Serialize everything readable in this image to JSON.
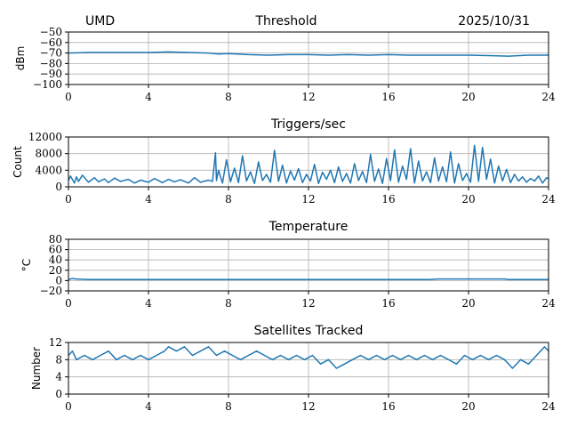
{
  "header": {
    "left": "UMD",
    "center": "Threshold",
    "right": "2025/10/31"
  },
  "chart_data": [
    {
      "type": "line",
      "title": "Threshold",
      "ylabel": "dBm",
      "xlim": [
        0,
        24
      ],
      "ylim": [
        -100,
        -50
      ],
      "xticks": [
        0,
        4,
        8,
        12,
        16,
        20,
        24
      ],
      "yticks": [
        -100,
        -90,
        -80,
        -70,
        -60,
        -50
      ],
      "ytick_labels": [
        "−100",
        "−90",
        "−80",
        "−70",
        "−60",
        "−50"
      ],
      "grid": true,
      "color": "#1f77b4",
      "series": [
        {
          "x": [
            0,
            1,
            2,
            3,
            4,
            5,
            6,
            7,
            7.5,
            8,
            9,
            10,
            11,
            12,
            13,
            14,
            15,
            16,
            17,
            18,
            19,
            20,
            21,
            22,
            23,
            24
          ],
          "values": [
            -70,
            -69.5,
            -69.5,
            -69.5,
            -69.5,
            -69,
            -69.5,
            -70,
            -71,
            -70.5,
            -71.5,
            -72,
            -71.5,
            -71.5,
            -72,
            -71.5,
            -72,
            -71.5,
            -72,
            -72,
            -72,
            -72,
            -72.5,
            -73,
            -72,
            -72
          ]
        }
      ]
    },
    {
      "type": "line",
      "title": "Triggers/sec",
      "ylabel": "Count",
      "xlim": [
        0,
        24
      ],
      "ylim": [
        0,
        12000
      ],
      "xticks": [
        0,
        4,
        8,
        12,
        16,
        20,
        24
      ],
      "yticks": [
        0,
        4000,
        8000,
        12000
      ],
      "ytick_labels": [
        "0",
        "4000",
        "8000",
        "12000"
      ],
      "grid": true,
      "color": "#1f77b4",
      "series": [
        {
          "x": [
            0,
            0.1,
            0.3,
            0.4,
            0.5,
            0.7,
            1.0,
            1.3,
            1.5,
            1.8,
            2.0,
            2.3,
            2.6,
            3.0,
            3.3,
            3.6,
            4.0,
            4.3,
            4.7,
            5.0,
            5.3,
            5.6,
            6.0,
            6.3,
            6.6,
            7.0,
            7.2,
            7.35,
            7.4,
            7.5,
            7.7,
            7.9,
            8.1,
            8.3,
            8.5,
            8.7,
            8.9,
            9.1,
            9.3,
            9.5,
            9.7,
            9.9,
            10.1,
            10.3,
            10.5,
            10.7,
            10.9,
            11.1,
            11.3,
            11.5,
            11.7,
            11.9,
            12.1,
            12.3,
            12.5,
            12.7,
            12.9,
            13.1,
            13.3,
            13.5,
            13.7,
            13.9,
            14.1,
            14.3,
            14.5,
            14.7,
            14.9,
            15.1,
            15.3,
            15.5,
            15.7,
            15.9,
            16.1,
            16.3,
            16.5,
            16.7,
            16.9,
            17.1,
            17.3,
            17.5,
            17.7,
            17.9,
            18.1,
            18.3,
            18.5,
            18.7,
            18.9,
            19.1,
            19.3,
            19.5,
            19.7,
            19.9,
            20.1,
            20.3,
            20.5,
            20.7,
            20.9,
            21.1,
            21.3,
            21.5,
            21.7,
            21.9,
            22.1,
            22.3,
            22.5,
            22.7,
            22.9,
            23.1,
            23.3,
            23.5,
            23.7,
            23.9,
            24.0
          ],
          "values": [
            1500,
            2600,
            900,
            2400,
            1300,
            2800,
            1100,
            2200,
            1200,
            1900,
            1000,
            2100,
            1300,
            1800,
            900,
            1600,
            1100,
            2000,
            1000,
            1800,
            1200,
            1700,
            900,
            2200,
            1100,
            1600,
            1300,
            8200,
            1500,
            4000,
            900,
            6500,
            1200,
            4500,
            1000,
            7500,
            1400,
            3600,
            800,
            6000,
            1500,
            3000,
            1100,
            8800,
            1300,
            5200,
            900,
            3800,
            1600,
            4400,
            1000,
            3000,
            1400,
            5400,
            800,
            3500,
            1800,
            4000,
            1000,
            4800,
            1300,
            3200,
            900,
            5600,
            1500,
            3700,
            1000,
            7800,
            1300,
            4300,
            800,
            6800,
            1500,
            8900,
            1100,
            5000,
            1800,
            9200,
            900,
            6200,
            1400,
            3600,
            1000,
            7000,
            1400,
            4800,
            1200,
            8400,
            900,
            5600,
            1500,
            3200,
            1100,
            10000,
            1300,
            9500,
            1800,
            6700,
            900,
            5000,
            1400,
            4200,
            1000,
            3000,
            1400,
            2400,
            1100,
            2000,
            1400,
            2600,
            900,
            2200,
            1900
          ]
        }
      ]
    },
    {
      "type": "line",
      "title": "Temperature",
      "ylabel": "°C",
      "xlim": [
        0,
        24
      ],
      "ylim": [
        -20,
        80
      ],
      "xticks": [
        0,
        4,
        8,
        12,
        16,
        20,
        24
      ],
      "yticks": [
        -20,
        0,
        20,
        40,
        60,
        80
      ],
      "ytick_labels": [
        "−20",
        "0",
        "20",
        "40",
        "60",
        "80"
      ],
      "grid": true,
      "color": "#1f77b4",
      "series": [
        {
          "x": [
            0,
            0.2,
            0.4,
            1,
            2,
            4,
            6,
            8,
            10,
            12,
            14,
            16,
            18,
            18.5,
            20,
            21.8,
            22,
            23,
            24
          ],
          "values": [
            2,
            4,
            3,
            2,
            2,
            2,
            2,
            2,
            2,
            2,
            2,
            2,
            2,
            3,
            3,
            3,
            2,
            2,
            2
          ]
        }
      ]
    },
    {
      "type": "line",
      "title": "Satellites Tracked",
      "ylabel": "Number",
      "xlim": [
        0,
        24
      ],
      "ylim": [
        0,
        12
      ],
      "xticks": [
        0,
        4,
        8,
        12,
        16,
        20,
        24
      ],
      "yticks": [
        0,
        4,
        8,
        12
      ],
      "ytick_labels": [
        "0",
        "4",
        "8",
        "12"
      ],
      "grid": true,
      "color": "#1f77b4",
      "series": [
        {
          "x": [
            0,
            0.2,
            0.4,
            0.8,
            1.2,
            1.6,
            2.0,
            2.4,
            2.8,
            3.2,
            3.6,
            4.0,
            4.4,
            4.8,
            5.0,
            5.4,
            5.8,
            6.2,
            6.6,
            7.0,
            7.4,
            7.8,
            8.2,
            8.6,
            9.0,
            9.4,
            9.8,
            10.2,
            10.6,
            11.0,
            11.4,
            11.8,
            12.2,
            12.6,
            13.0,
            13.4,
            13.8,
            14.2,
            14.6,
            15.0,
            15.4,
            15.8,
            16.2,
            16.6,
            17.0,
            17.4,
            17.8,
            18.2,
            18.6,
            19.0,
            19.4,
            19.8,
            20.2,
            20.6,
            21.0,
            21.4,
            21.8,
            22.2,
            22.6,
            23.0,
            23.4,
            23.8,
            24.0
          ],
          "values": [
            9,
            10,
            8,
            9,
            8,
            9,
            10,
            8,
            9,
            8,
            9,
            8,
            9,
            10,
            11,
            10,
            11,
            9,
            10,
            11,
            9,
            10,
            9,
            8,
            9,
            10,
            9,
            8,
            9,
            8,
            9,
            8,
            9,
            7,
            8,
            6,
            7,
            8,
            9,
            8,
            9,
            8,
            9,
            8,
            9,
            8,
            9,
            8,
            9,
            8,
            7,
            9,
            8,
            9,
            8,
            9,
            8,
            6,
            8,
            7,
            9,
            11,
            10
          ]
        }
      ]
    }
  ]
}
